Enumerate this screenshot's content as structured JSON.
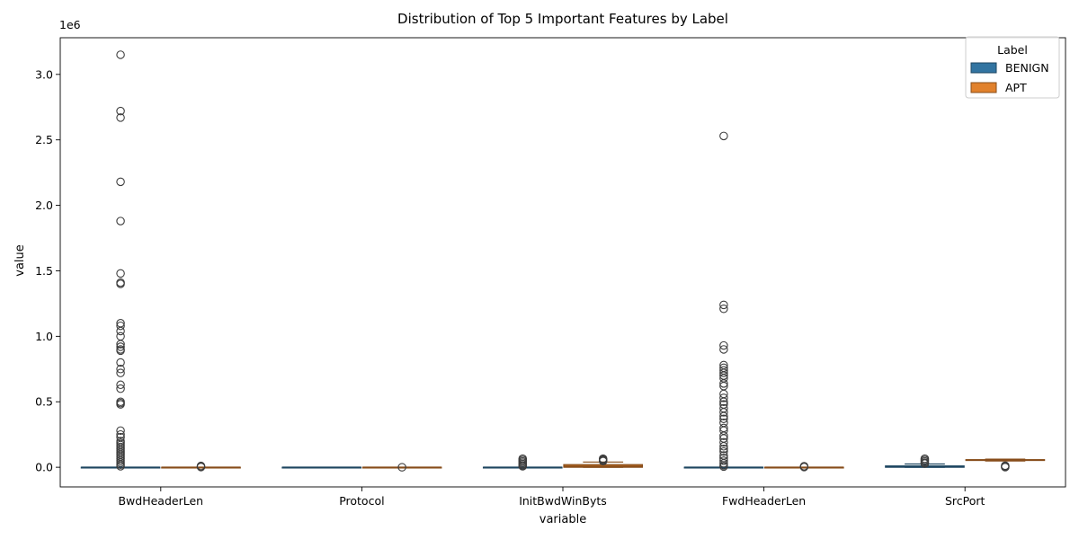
{
  "chart_data": {
    "type": "box",
    "title": "Distribution of Top 5 Important Features by Label",
    "xlabel": "variable",
    "ylabel": "value",
    "y_offset_label": "1e6",
    "ylim": [
      -150000,
      3280000
    ],
    "y_ticks": [
      0,
      500000,
      1000000,
      1500000,
      2000000,
      2500000,
      3000000
    ],
    "y_tick_labels": [
      "0.0",
      "0.5",
      "1.0",
      "1.5",
      "2.0",
      "2.5",
      "3.0"
    ],
    "categories": [
      "BwdHeaderLen",
      "Protocol",
      "InitBwdWinByts",
      "FwdHeaderLen",
      "SrcPort"
    ],
    "legend": {
      "title": "Label",
      "position": "top-right"
    },
    "series": [
      {
        "name": "BENIGN",
        "color": "#3274a1",
        "boxes": [
          {
            "q1": 0,
            "median": 0,
            "q3": 0,
            "whisker_low": 0,
            "whisker_high": 0,
            "outliers": [
              3150000,
              2720000,
              2670000,
              2180000,
              1880000,
              1480000,
              1410000,
              1400000,
              1100000,
              1080000,
              1040000,
              1000000,
              940000,
              920000,
              900000,
              890000,
              800000,
              750000,
              720000,
              630000,
              600000,
              500000,
              490000,
              480000,
              280000,
              250000,
              230000,
              200000,
              185000,
              170000,
              155000,
              140000,
              125000,
              110000,
              95000,
              80000,
              65000,
              50000,
              35000,
              20000,
              8000
            ]
          },
          {
            "q1": 0,
            "median": 0,
            "q3": 0,
            "whisker_low": 0,
            "whisker_high": 0,
            "outliers": []
          },
          {
            "q1": 0,
            "median": 0,
            "q3": 0,
            "whisker_low": 0,
            "whisker_high": 0,
            "outliers": [
              65000,
              55000,
              45000,
              35000,
              25000,
              15000,
              8000
            ]
          },
          {
            "q1": 0,
            "median": 0,
            "q3": 0,
            "whisker_low": 0,
            "whisker_high": 0,
            "outliers": [
              2530000,
              1240000,
              1210000,
              930000,
              900000,
              780000,
              760000,
              740000,
              720000,
              700000,
              680000,
              640000,
              620000,
              560000,
              530000,
              500000,
              480000,
              450000,
              420000,
              390000,
              370000,
              340000,
              300000,
              280000,
              240000,
              220000,
              190000,
              160000,
              140000,
              120000,
              90000,
              70000,
              50000,
              30000,
              15000,
              5000
            ]
          },
          {
            "q1": 0,
            "median": 3000,
            "q3": 10000,
            "whisker_low": 0,
            "whisker_high": 25000,
            "outliers": [
              65000,
              55000,
              45000,
              35000,
              28000
            ]
          }
        ]
      },
      {
        "name": "APT",
        "color": "#e1812c",
        "boxes": [
          {
            "q1": 0,
            "median": 0,
            "q3": 0,
            "whisker_low": 0,
            "whisker_high": 0,
            "outliers": [
              10000,
              5000,
              2000
            ]
          },
          {
            "q1": 0,
            "median": 0,
            "q3": 0,
            "whisker_low": 0,
            "whisker_high": 0,
            "outliers": [
              6
            ]
          },
          {
            "q1": 0,
            "median": 8000,
            "q3": 20000,
            "whisker_low": 0,
            "whisker_high": 40000,
            "outliers": [
              65000,
              58000,
              52000,
              47000
            ]
          },
          {
            "q1": 0,
            "median": 0,
            "q3": 0,
            "whisker_low": 0,
            "whisker_high": 0,
            "outliers": [
              8000,
              4000,
              1500
            ]
          },
          {
            "q1": 52000,
            "median": 55000,
            "q3": 58000,
            "whisker_low": 48000,
            "whisker_high": 62000,
            "outliers": [
              12000,
              8000,
              4000,
              1000
            ]
          }
        ]
      }
    ]
  }
}
